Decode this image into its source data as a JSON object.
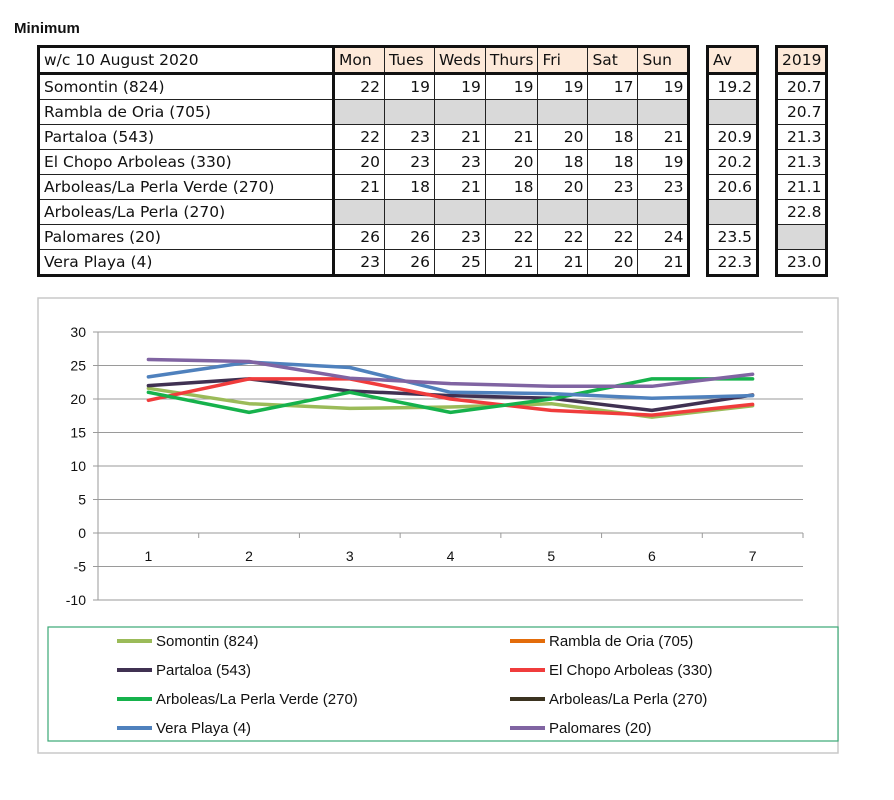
{
  "title": "Minimum",
  "week_label": "w/c 10 August  2020",
  "day_headers": [
    "Mon",
    "Tues",
    "Weds",
    "Thurs",
    "Fri",
    "Sat",
    "Sun"
  ],
  "av_header": "Av",
  "year_header": "2019",
  "rows": [
    {
      "name": "Somontin (824)",
      "days": [
        "22",
        "19",
        "19",
        "19",
        "19",
        "17",
        "19"
      ],
      "av": "19.2",
      "y2019": "20.7"
    },
    {
      "name": "Rambla de Oria (705)",
      "days": [
        "",
        "",
        "",
        "",
        "",
        "",
        ""
      ],
      "av": "",
      "y2019": "20.7"
    },
    {
      "name": "Partaloa (543)",
      "days": [
        "22",
        "23",
        "21",
        "21",
        "20",
        "18",
        "21"
      ],
      "av": "20.9",
      "y2019": "21.3"
    },
    {
      "name": "El Chopo Arboleas (330)",
      "days": [
        "20",
        "23",
        "23",
        "20",
        "18",
        "18",
        "19"
      ],
      "av": "20.2",
      "y2019": "21.3"
    },
    {
      "name": "Arboleas/La Perla Verde (270)",
      "days": [
        "21",
        "18",
        "21",
        "18",
        "20",
        "23",
        "23"
      ],
      "av": "20.6",
      "y2019": "21.1"
    },
    {
      "name": "Arboleas/La Perla (270)",
      "days": [
        "",
        "",
        "",
        "",
        "",
        "",
        ""
      ],
      "av": "",
      "y2019": "22.8"
    },
    {
      "name": "Palomares (20)",
      "days": [
        "26",
        "26",
        "23",
        "22",
        "22",
        "22",
        "24"
      ],
      "av": "23.5",
      "y2019": ""
    },
    {
      "name": "Vera Playa (4)",
      "days": [
        "23",
        "26",
        "25",
        "21",
        "21",
        "20",
        "21"
      ],
      "av": "22.3",
      "y2019": "23.0"
    }
  ],
  "chart_data": {
    "type": "line",
    "x": [
      1,
      2,
      3,
      4,
      5,
      6,
      7
    ],
    "ylim": [
      -10,
      30
    ],
    "yticks": [
      30,
      25,
      20,
      15,
      10,
      5,
      0,
      -5,
      -10
    ],
    "grid": true,
    "legend_placement": "bottom",
    "series": [
      {
        "name": "Somontin (824)",
        "color": "#9bbb59",
        "values": [
          21.6,
          19.3,
          18.6,
          18.8,
          19.3,
          17.3,
          19.0
        ]
      },
      {
        "name": "Rambla de Oria (705)",
        "color": "#e36c0a",
        "values": [
          null,
          null,
          null,
          null,
          null,
          null,
          null
        ]
      },
      {
        "name": "Partaloa (543)",
        "color": "#403152",
        "values": [
          22.0,
          23.0,
          21.2,
          20.5,
          20.1,
          18.3,
          20.6
        ]
      },
      {
        "name": "El Chopo Arboleas (330)",
        "color": "#f03c3c",
        "values": [
          19.8,
          23.0,
          23.0,
          20.0,
          18.3,
          17.6,
          19.2
        ]
      },
      {
        "name": "Arboleas/La Perla Verde (270)",
        "color": "#16b24c",
        "values": [
          21.0,
          18.0,
          21.0,
          18.0,
          20.0,
          23.0,
          23.0
        ]
      },
      {
        "name": "Arboleas/La Perla (270)",
        "color": "#3b3320",
        "values": [
          null,
          null,
          null,
          null,
          null,
          null,
          null
        ]
      },
      {
        "name": "Vera Playa (4)",
        "color": "#4f81bd",
        "values": [
          23.3,
          25.5,
          24.7,
          21.0,
          20.8,
          20.1,
          20.5
        ]
      },
      {
        "name": "Palomares (20)",
        "color": "#8064a2",
        "values": [
          25.9,
          25.6,
          23.1,
          22.3,
          21.9,
          21.9,
          23.7
        ]
      }
    ]
  }
}
